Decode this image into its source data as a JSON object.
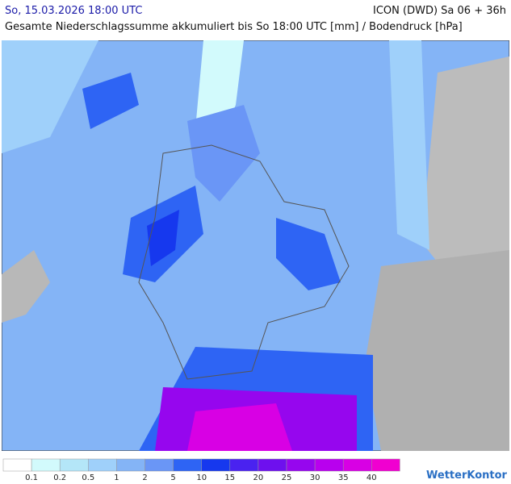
{
  "header": {
    "date": "So, 15.03.2026 18:00 UTC",
    "model": "ICON (DWD) Sa 06 + 36h",
    "description": "Gesamte Niederschlagssumme akkumuliert bis So 18:00 UTC [mm] / Bodendruck [hPa]"
  },
  "legend": {
    "labels": [
      0.1,
      0.2,
      0.5,
      1,
      2,
      5,
      10,
      15,
      20,
      25,
      30,
      35,
      40
    ],
    "colors": [
      "#ffffff",
      "#d2fafc",
      "#b4e6f8",
      "#9fd0fa",
      "#84b4f6",
      "#6a96f6",
      "#2e64f4",
      "#1638ee",
      "#4a22f0",
      "#6e10ee",
      "#9606ee",
      "#b800ee",
      "#d800e4",
      "#f000d0"
    ]
  },
  "logo": "WetterKontor"
}
